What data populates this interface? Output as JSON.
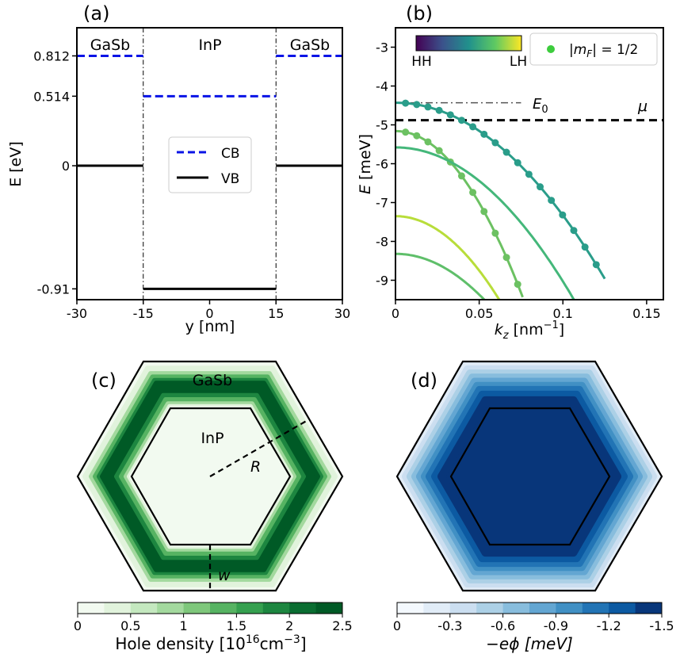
{
  "chart_data": [
    {
      "panel_label": "(a)",
      "type": "line",
      "xlabel": "y [nm]",
      "ylabel": "E [eV]",
      "xlim": [
        -30,
        30
      ],
      "ylim": [
        -0.99,
        1.02
      ],
      "xticks": [
        -30,
        -15,
        0,
        15,
        30
      ],
      "xtick_labels": [
        "-30",
        "-15",
        "0",
        "15",
        "30"
      ],
      "yticks": [
        0.812,
        0.514,
        0,
        -0.91
      ],
      "ytick_labels": [
        "0.812",
        "0.514",
        "0",
        "-0.91"
      ],
      "region_labels": [
        "GaSb",
        "InP",
        "GaSb"
      ],
      "interfaces": [
        -15,
        15
      ],
      "legend": {
        "location": "center",
        "entries": [
          "CB",
          "VB"
        ]
      },
      "series": [
        {
          "name": "CB",
          "color": "#0a14e6",
          "style": "dashed",
          "segments": [
            {
              "x": [
                -30,
                -15
              ],
              "y": 0.812
            },
            {
              "x": [
                -15,
                15
              ],
              "y": 0.514
            },
            {
              "x": [
                15,
                30
              ],
              "y": 0.812
            }
          ]
        },
        {
          "name": "VB",
          "color": "#000000",
          "style": "solid",
          "segments": [
            {
              "x": [
                -30,
                -15
              ],
              "y": 0
            },
            {
              "x": [
                -15,
                15
              ],
              "y": -0.91
            },
            {
              "x": [
                15,
                30
              ],
              "y": 0
            }
          ]
        }
      ]
    },
    {
      "panel_label": "(b)",
      "type": "line",
      "xlabel_main": "k",
      "xlabel_sub": "z",
      "xlabel_unit": " [nm",
      "xlabel_exp": "−1",
      "xlabel_close": "]",
      "ylabel_main": "E",
      "ylabel_unit": " [meV]",
      "xlim": [
        0,
        0.16
      ],
      "ylim": [
        -9.5,
        -2.5
      ],
      "xticks": [
        0,
        0.05,
        0.1,
        0.15
      ],
      "xtick_labels": [
        "0",
        "0.05",
        "0.1",
        "0.15"
      ],
      "yticks": [
        -3,
        -4,
        -5,
        -6,
        -7,
        -8,
        -9
      ],
      "ytick_labels": [
        "-3",
        "-4",
        "-5",
        "-6",
        "-7",
        "-8",
        "-9"
      ],
      "colorbar": {
        "min_label": "HH",
        "max_label": "LH",
        "colormap": "viridis",
        "location": "top-left"
      },
      "legend": {
        "location": "top-right",
        "label": "|m_F| = 1/2",
        "marker_color": "#3dcc3d"
      },
      "reference_lines": [
        {
          "label_main": "E",
          "label_sub": "0",
          "y": -4.43,
          "x_end": 0.075,
          "style": "dashdot",
          "color": "#555555"
        },
        {
          "label_main": "μ",
          "y": -4.88,
          "style": "dashed",
          "color": "#000000"
        }
      ],
      "series": [
        {
          "id": "band-1",
          "color": "#2a9d8a",
          "E0": -4.43,
          "curvature": 290,
          "kmax": 0.125,
          "markers": true
        },
        {
          "id": "band-2",
          "color": "#6cc162",
          "E0": -5.16,
          "curvature": 740,
          "kmax": 0.076,
          "markers": true
        },
        {
          "id": "band-3",
          "color": "#44b77a",
          "E0": -5.58,
          "curvature": 345,
          "kmax": 0.107,
          "markers": false
        },
        {
          "id": "band-4",
          "color": "#b8dd3a",
          "E0": -7.35,
          "curvature": 560,
          "kmax": 0.062,
          "markers": false
        },
        {
          "id": "band-5",
          "color": "#5fbf6a",
          "E0": -8.32,
          "curvature": 420,
          "kmax": 0.078,
          "markers": false
        }
      ]
    },
    {
      "panel_label": "(c)",
      "type": "heatmap",
      "outer_label": "GaSb",
      "inner_label": "InP",
      "radius_label": "R",
      "width_label": "w",
      "colorbar": {
        "label_main": "Hole density [10",
        "label_exp1": "16",
        "label_mid": "cm",
        "label_exp2": "−3",
        "label_close": "]",
        "min": 0,
        "max": 2.5,
        "ticks": [
          0,
          0.5,
          1,
          1.5,
          2,
          2.5
        ],
        "tick_labels": [
          "0",
          "0.5",
          "1",
          "1.5",
          "2",
          "2.5"
        ],
        "colors": [
          "#f2faf0",
          "#e1f3dc",
          "#c4e8bf",
          "#a3d99e",
          "#7ec77b",
          "#56b362",
          "#35a04f",
          "#1d8640",
          "#0a6d31",
          "#005a26"
        ]
      }
    },
    {
      "panel_label": "(d)",
      "type": "heatmap",
      "colorbar": {
        "label": "−eϕ [meV]",
        "min": 0,
        "max": -1.5,
        "ticks": [
          0,
          -0.3,
          -0.6,
          -0.9,
          -1.2,
          -1.5
        ],
        "tick_labels": [
          "0",
          "-0.3",
          "-0.6",
          "-0.9",
          "-1.2",
          "-1.5"
        ],
        "colors": [
          "#f4f9fe",
          "#e1ecf7",
          "#cbdef0",
          "#acd0e6",
          "#88bddd",
          "#63a6d2",
          "#4190c4",
          "#2274b5",
          "#0c5aa2",
          "#08367a"
        ]
      }
    }
  ]
}
